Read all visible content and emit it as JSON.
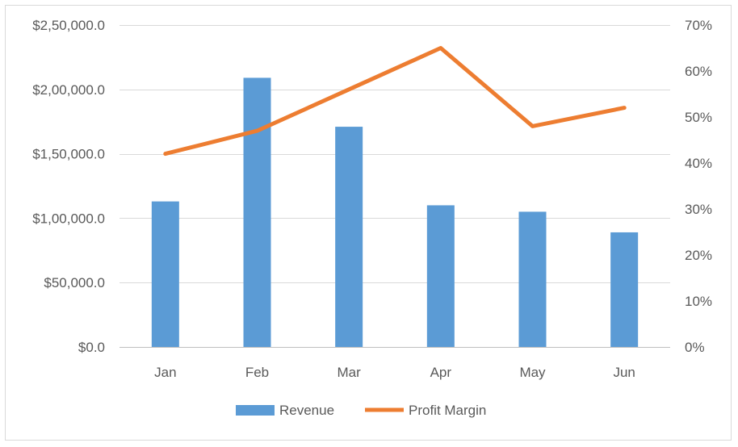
{
  "chart_data": {
    "type": "bar",
    "categories": [
      "Jan",
      "Feb",
      "Mar",
      "Apr",
      "May",
      "Jun"
    ],
    "series": [
      {
        "name": "Revenue",
        "type": "bar",
        "axis": "left",
        "color": "#5b9bd5",
        "values": [
          113000,
          209000,
          171000,
          110000,
          105000,
          89000
        ]
      },
      {
        "name": "Profit Margin",
        "type": "line",
        "axis": "right",
        "color": "#ed7d31",
        "values": [
          0.42,
          0.47,
          0.56,
          0.65,
          0.48,
          0.52
        ]
      }
    ],
    "y_left": {
      "ylim": [
        0,
        250000
      ],
      "tick_labels": [
        "$0.0",
        "$50,000.0",
        "$1,00,000.0",
        "$1,50,000.0",
        "$2,00,000.0",
        "$2,50,000.0"
      ]
    },
    "y_right": {
      "ylim": [
        0,
        0.7
      ],
      "tick_labels": [
        "0%",
        "10%",
        "20%",
        "30%",
        "40%",
        "50%",
        "60%",
        "70%"
      ]
    },
    "grid": true,
    "legend_position": "bottom",
    "legend": [
      "Revenue",
      "Profit Margin"
    ]
  }
}
